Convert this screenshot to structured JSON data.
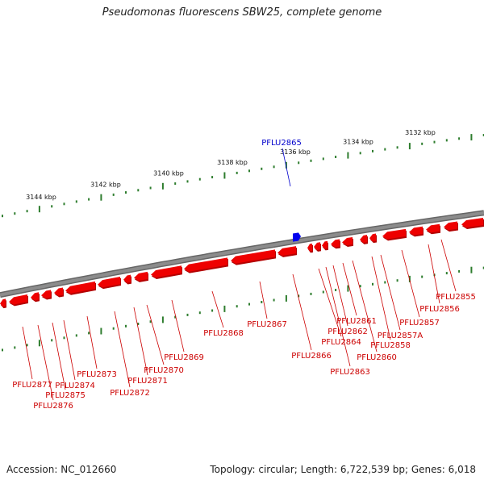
{
  "title": "Pseudomonas fluorescens SBW25, complete genome",
  "footer": {
    "accession": "Accession: NC_012660",
    "summary": "Topology: circular; Length: 6,722,539 bp; Genes: 6,018"
  },
  "colors": {
    "backbone": "#8c8c8c",
    "gene": "#ee0000",
    "gene_shadow": "#b30000",
    "tick": "#2e7d2e",
    "label": "#cc0000",
    "highlight": "#0000ee",
    "highlight_label": "#0000cc"
  },
  "scale_labels": [
    "3132 kbp",
    "3134 kbp",
    "3136 kbp",
    "3138 kbp",
    "3140 kbp",
    "3142 kbp",
    "3144 kbp"
  ],
  "highlighted_gene": "PFLU2865",
  "gene_labels": [
    "PFLU2855",
    "PFLU2856",
    "PFLU2857",
    "PFLU2857A",
    "PFLU2858",
    "PFLU2860",
    "PFLU2861",
    "PFLU2862",
    "PFLU2863",
    "PFLU2864",
    "PFLU2866",
    "PFLU2867",
    "PFLU2868",
    "PFLU2869",
    "PFLU2870",
    "PFLU2871",
    "PFLU2872",
    "PFLU2873",
    "PFLU2874",
    "PFLU2875",
    "PFLU2876",
    "PFLU2877"
  ]
}
